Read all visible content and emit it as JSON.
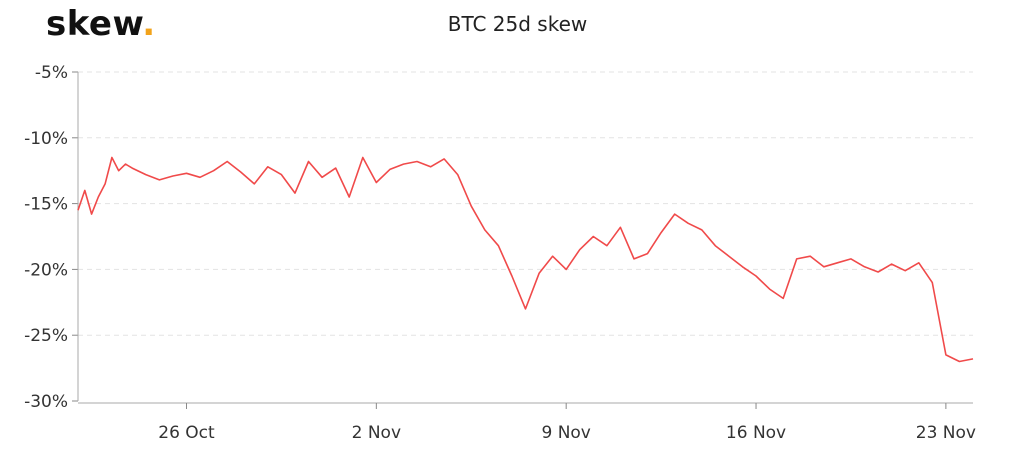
{
  "brand": {
    "name": "skew",
    "dot": ".",
    "dot_color": "#f2a31b"
  },
  "chart_data": {
    "type": "line",
    "title": "BTC 25d skew",
    "xlabel": "",
    "ylabel": "",
    "y_unit": "%",
    "ylim": [
      -30,
      -5
    ],
    "yticks": [
      -5,
      -10,
      -15,
      -20,
      -25,
      -30
    ],
    "ytick_labels": [
      "-5%",
      "-10%",
      "-15%",
      "-20%",
      "-25%",
      "-30%"
    ],
    "xlim": [
      "2020-10-22",
      "2020-11-24"
    ],
    "xticks": [
      "2020-10-26",
      "2020-11-02",
      "2020-11-09",
      "2020-11-16",
      "2020-11-23"
    ],
    "xtick_labels": [
      "26 Oct",
      "2 Nov",
      "9 Nov",
      "16 Nov",
      "23 Nov"
    ],
    "grid": "horizontal-dashed",
    "legend": "none",
    "line_color": "#f04a4a",
    "series": [
      {
        "x": [
          "2020-10-22T00:00",
          "2020-10-22T06:00",
          "2020-10-22T12:00",
          "2020-10-22T18:00",
          "2020-10-23T00:00",
          "2020-10-23T06:00",
          "2020-10-23T12:00",
          "2020-10-23T18:00",
          "2020-10-24T00:00",
          "2020-10-24T12:00",
          "2020-10-25T00:00",
          "2020-10-25T12:00",
          "2020-10-26T00:00",
          "2020-10-26T12:00",
          "2020-10-27T00:00",
          "2020-10-27T12:00",
          "2020-10-28T00:00",
          "2020-10-28T12:00",
          "2020-10-29T00:00",
          "2020-10-29T12:00",
          "2020-10-30T00:00",
          "2020-10-30T12:00",
          "2020-10-31T00:00",
          "2020-10-31T12:00",
          "2020-11-01T00:00",
          "2020-11-01T12:00",
          "2020-11-02T00:00",
          "2020-11-02T12:00",
          "2020-11-03T00:00",
          "2020-11-03T12:00",
          "2020-11-04T00:00",
          "2020-11-04T12:00",
          "2020-11-05T00:00",
          "2020-11-05T12:00",
          "2020-11-06T00:00",
          "2020-11-06T12:00",
          "2020-11-07T00:00",
          "2020-11-07T12:00",
          "2020-11-08T00:00",
          "2020-11-08T12:00",
          "2020-11-09T00:00",
          "2020-11-09T12:00",
          "2020-11-10T00:00",
          "2020-11-10T12:00",
          "2020-11-11T00:00",
          "2020-11-11T12:00",
          "2020-11-12T00:00",
          "2020-11-12T12:00",
          "2020-11-13T00:00",
          "2020-11-13T12:00",
          "2020-11-14T00:00",
          "2020-11-14T12:00",
          "2020-11-15T00:00",
          "2020-11-15T12:00",
          "2020-11-16T00:00",
          "2020-11-16T12:00",
          "2020-11-17T00:00",
          "2020-11-17T12:00",
          "2020-11-18T00:00",
          "2020-11-18T12:00",
          "2020-11-19T00:00",
          "2020-11-19T12:00",
          "2020-11-20T00:00",
          "2020-11-20T12:00",
          "2020-11-21T00:00",
          "2020-11-21T12:00",
          "2020-11-22T00:00",
          "2020-11-22T12:00",
          "2020-11-23T00:00",
          "2020-11-23T12:00",
          "2020-11-24T00:00"
        ],
        "values": [
          -15.5,
          -14.0,
          -15.8,
          -14.5,
          -13.5,
          -11.5,
          -12.5,
          -12.0,
          -12.3,
          -12.8,
          -13.2,
          -12.9,
          -12.7,
          -13.0,
          -12.5,
          -11.8,
          -12.6,
          -13.5,
          -12.2,
          -12.8,
          -14.2,
          -11.8,
          -13.0,
          -12.3,
          -14.5,
          -11.5,
          -13.4,
          -12.4,
          -12.0,
          -11.8,
          -12.2,
          -11.6,
          -12.8,
          -15.2,
          -17.0,
          -18.2,
          -20.5,
          -23.0,
          -20.3,
          -19.0,
          -20.0,
          -18.5,
          -17.5,
          -18.2,
          -16.8,
          -19.2,
          -18.8,
          -17.2,
          -15.8,
          -16.5,
          -17.0,
          -18.2,
          -19.0,
          -19.8,
          -20.5,
          -21.5,
          -22.2,
          -19.2,
          -19.0,
          -19.8,
          -19.5,
          -19.2,
          -19.8,
          -20.2,
          -19.6,
          -20.1,
          -19.5,
          -21.0,
          -26.5,
          -27.0,
          -26.8
        ]
      }
    ]
  }
}
